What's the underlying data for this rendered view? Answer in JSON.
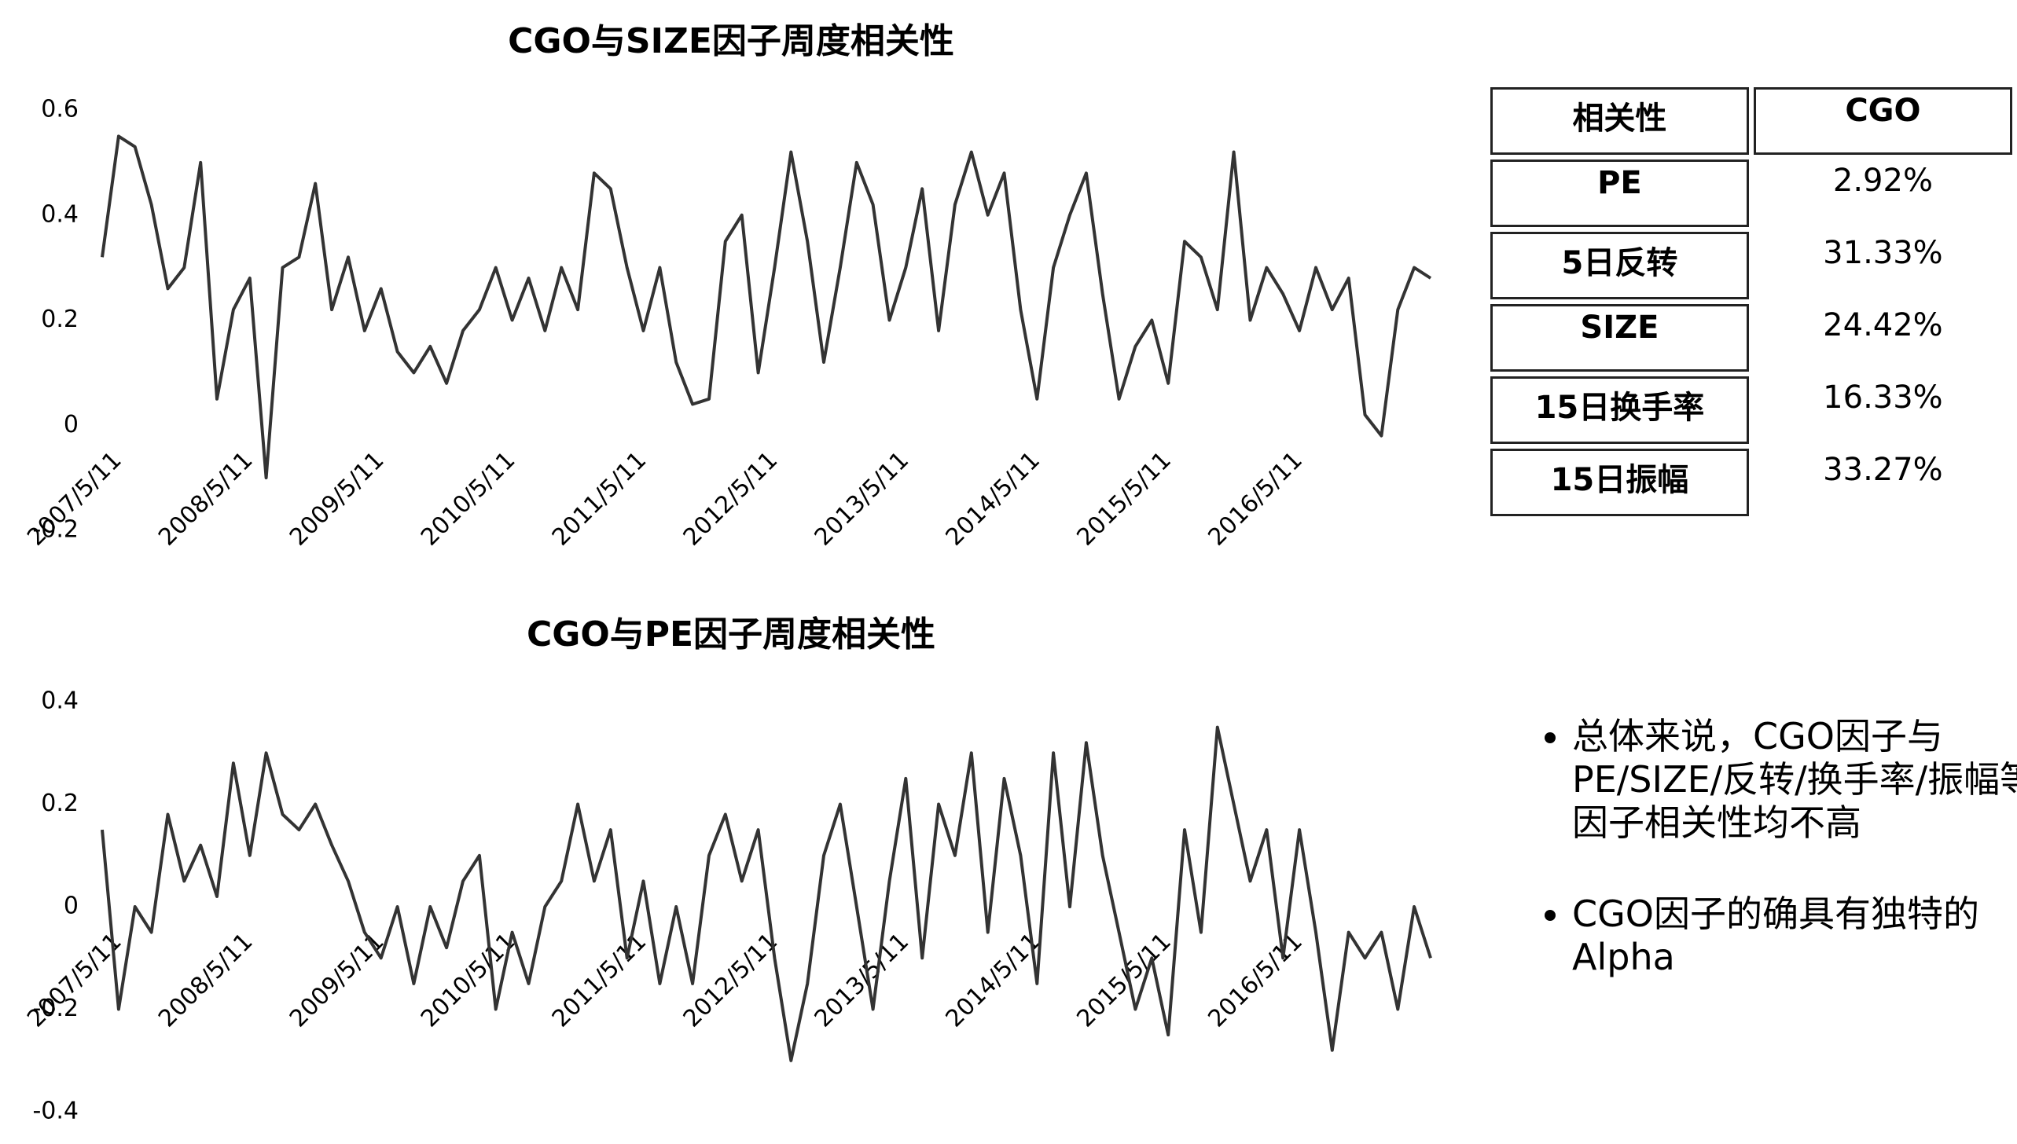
{
  "chart_data": [
    {
      "type": "line",
      "title": "CGO与SIZE因子周度相关性",
      "categories": [
        "2007/5/11",
        null,
        null,
        null,
        null,
        null,
        null,
        null,
        "2008/5/11",
        null,
        null,
        null,
        null,
        null,
        null,
        null,
        "2009/5/11",
        null,
        null,
        null,
        null,
        null,
        null,
        null,
        "2010/5/11",
        null,
        null,
        null,
        null,
        null,
        null,
        null,
        "2011/5/11",
        null,
        null,
        null,
        null,
        null,
        null,
        null,
        "2012/5/11",
        null,
        null,
        null,
        null,
        null,
        null,
        null,
        "2013/5/11",
        null,
        null,
        null,
        null,
        null,
        null,
        null,
        "2014/5/11",
        null,
        null,
        null,
        null,
        null,
        null,
        null,
        "2015/5/11",
        null,
        null,
        null,
        null,
        null,
        null,
        null,
        "2016/5/11",
        null,
        null,
        null,
        null,
        null,
        null,
        null,
        null,
        null
      ],
      "series": [
        {
          "color": "#333333",
          "values": [
            0.32,
            0.55,
            0.53,
            0.42,
            0.26,
            0.3,
            0.5,
            0.05,
            0.22,
            0.28,
            -0.1,
            0.3,
            0.32,
            0.46,
            0.22,
            0.32,
            0.18,
            0.26,
            0.14,
            0.1,
            0.15,
            0.08,
            0.18,
            0.22,
            0.3,
            0.2,
            0.28,
            0.18,
            0.3,
            0.22,
            0.48,
            0.45,
            0.3,
            0.18,
            0.3,
            0.12,
            0.04,
            0.05,
            0.35,
            0.4,
            0.1,
            0.3,
            0.52,
            0.35,
            0.12,
            0.3,
            0.5,
            0.42,
            0.2,
            0.3,
            0.45,
            0.18,
            0.42,
            0.52,
            0.4,
            0.48,
            0.22,
            0.05,
            0.3,
            0.4,
            0.48,
            0.25,
            0.05,
            0.15,
            0.2,
            0.08,
            0.35,
            0.32,
            0.22,
            0.52,
            0.2,
            0.3,
            0.25,
            0.18,
            0.3,
            0.22,
            0.28,
            0.02,
            -0.02,
            0.22,
            0.3,
            0.28
          ]
        }
      ],
      "ylim": [
        -0.2,
        0.6
      ],
      "yticks": [
        -0.2,
        0,
        0.2,
        0.4,
        0.6
      ]
    },
    {
      "type": "line",
      "title": "CGO与PE因子周度相关性",
      "categories": [
        "2007/5/11",
        null,
        null,
        null,
        null,
        null,
        null,
        null,
        "2008/5/11",
        null,
        null,
        null,
        null,
        null,
        null,
        null,
        "2009/5/11",
        null,
        null,
        null,
        null,
        null,
        null,
        null,
        "2010/5/11",
        null,
        null,
        null,
        null,
        null,
        null,
        null,
        "2011/5/11",
        null,
        null,
        null,
        null,
        null,
        null,
        null,
        "2012/5/11",
        null,
        null,
        null,
        null,
        null,
        null,
        null,
        "2013/5/11",
        null,
        null,
        null,
        null,
        null,
        null,
        null,
        "2014/5/11",
        null,
        null,
        null,
        null,
        null,
        null,
        null,
        "2015/5/11",
        null,
        null,
        null,
        null,
        null,
        null,
        null,
        "2016/5/11",
        null,
        null,
        null,
        null,
        null,
        null,
        null,
        null,
        null
      ],
      "series": [
        {
          "color": "#333333",
          "values": [
            0.15,
            -0.2,
            0.0,
            -0.05,
            0.18,
            0.05,
            0.12,
            0.02,
            0.28,
            0.1,
            0.3,
            0.18,
            0.15,
            0.2,
            0.12,
            0.05,
            -0.05,
            -0.1,
            0.0,
            -0.15,
            0.0,
            -0.08,
            0.05,
            0.1,
            -0.2,
            -0.05,
            -0.15,
            0.0,
            0.05,
            0.2,
            0.05,
            0.15,
            -0.1,
            0.05,
            -0.15,
            0.0,
            -0.15,
            0.1,
            0.18,
            0.05,
            0.15,
            -0.1,
            -0.3,
            -0.15,
            0.1,
            0.2,
            0.0,
            -0.2,
            0.05,
            0.25,
            -0.1,
            0.2,
            0.1,
            0.3,
            -0.05,
            0.25,
            0.1,
            -0.15,
            0.3,
            0.0,
            0.32,
            0.1,
            -0.05,
            -0.2,
            -0.1,
            -0.25,
            0.15,
            -0.05,
            0.35,
            0.2,
            0.05,
            0.15,
            -0.1,
            0.15,
            -0.05,
            -0.28,
            -0.05,
            -0.1,
            -0.05,
            -0.2,
            0.0,
            -0.1
          ]
        }
      ],
      "ylim": [
        -0.4,
        0.4
      ],
      "yticks": [
        -0.4,
        -0.2,
        0,
        0.2,
        0.4
      ]
    }
  ],
  "table": {
    "header": [
      "相关性",
      "CGO"
    ],
    "rows": [
      [
        "PE",
        "2.92%"
      ],
      [
        "5日反转",
        "31.33%"
      ],
      [
        "SIZE",
        "24.42%"
      ],
      [
        "15日换手率",
        "16.33%"
      ],
      [
        "15日振幅",
        "33.27%"
      ]
    ]
  },
  "bullets": [
    "总体来说，CGO因子与PE/SIZE/反转/换手率/振幅等因子相关性均不高",
    "CGO因子的确具有独特的Alpha"
  ]
}
